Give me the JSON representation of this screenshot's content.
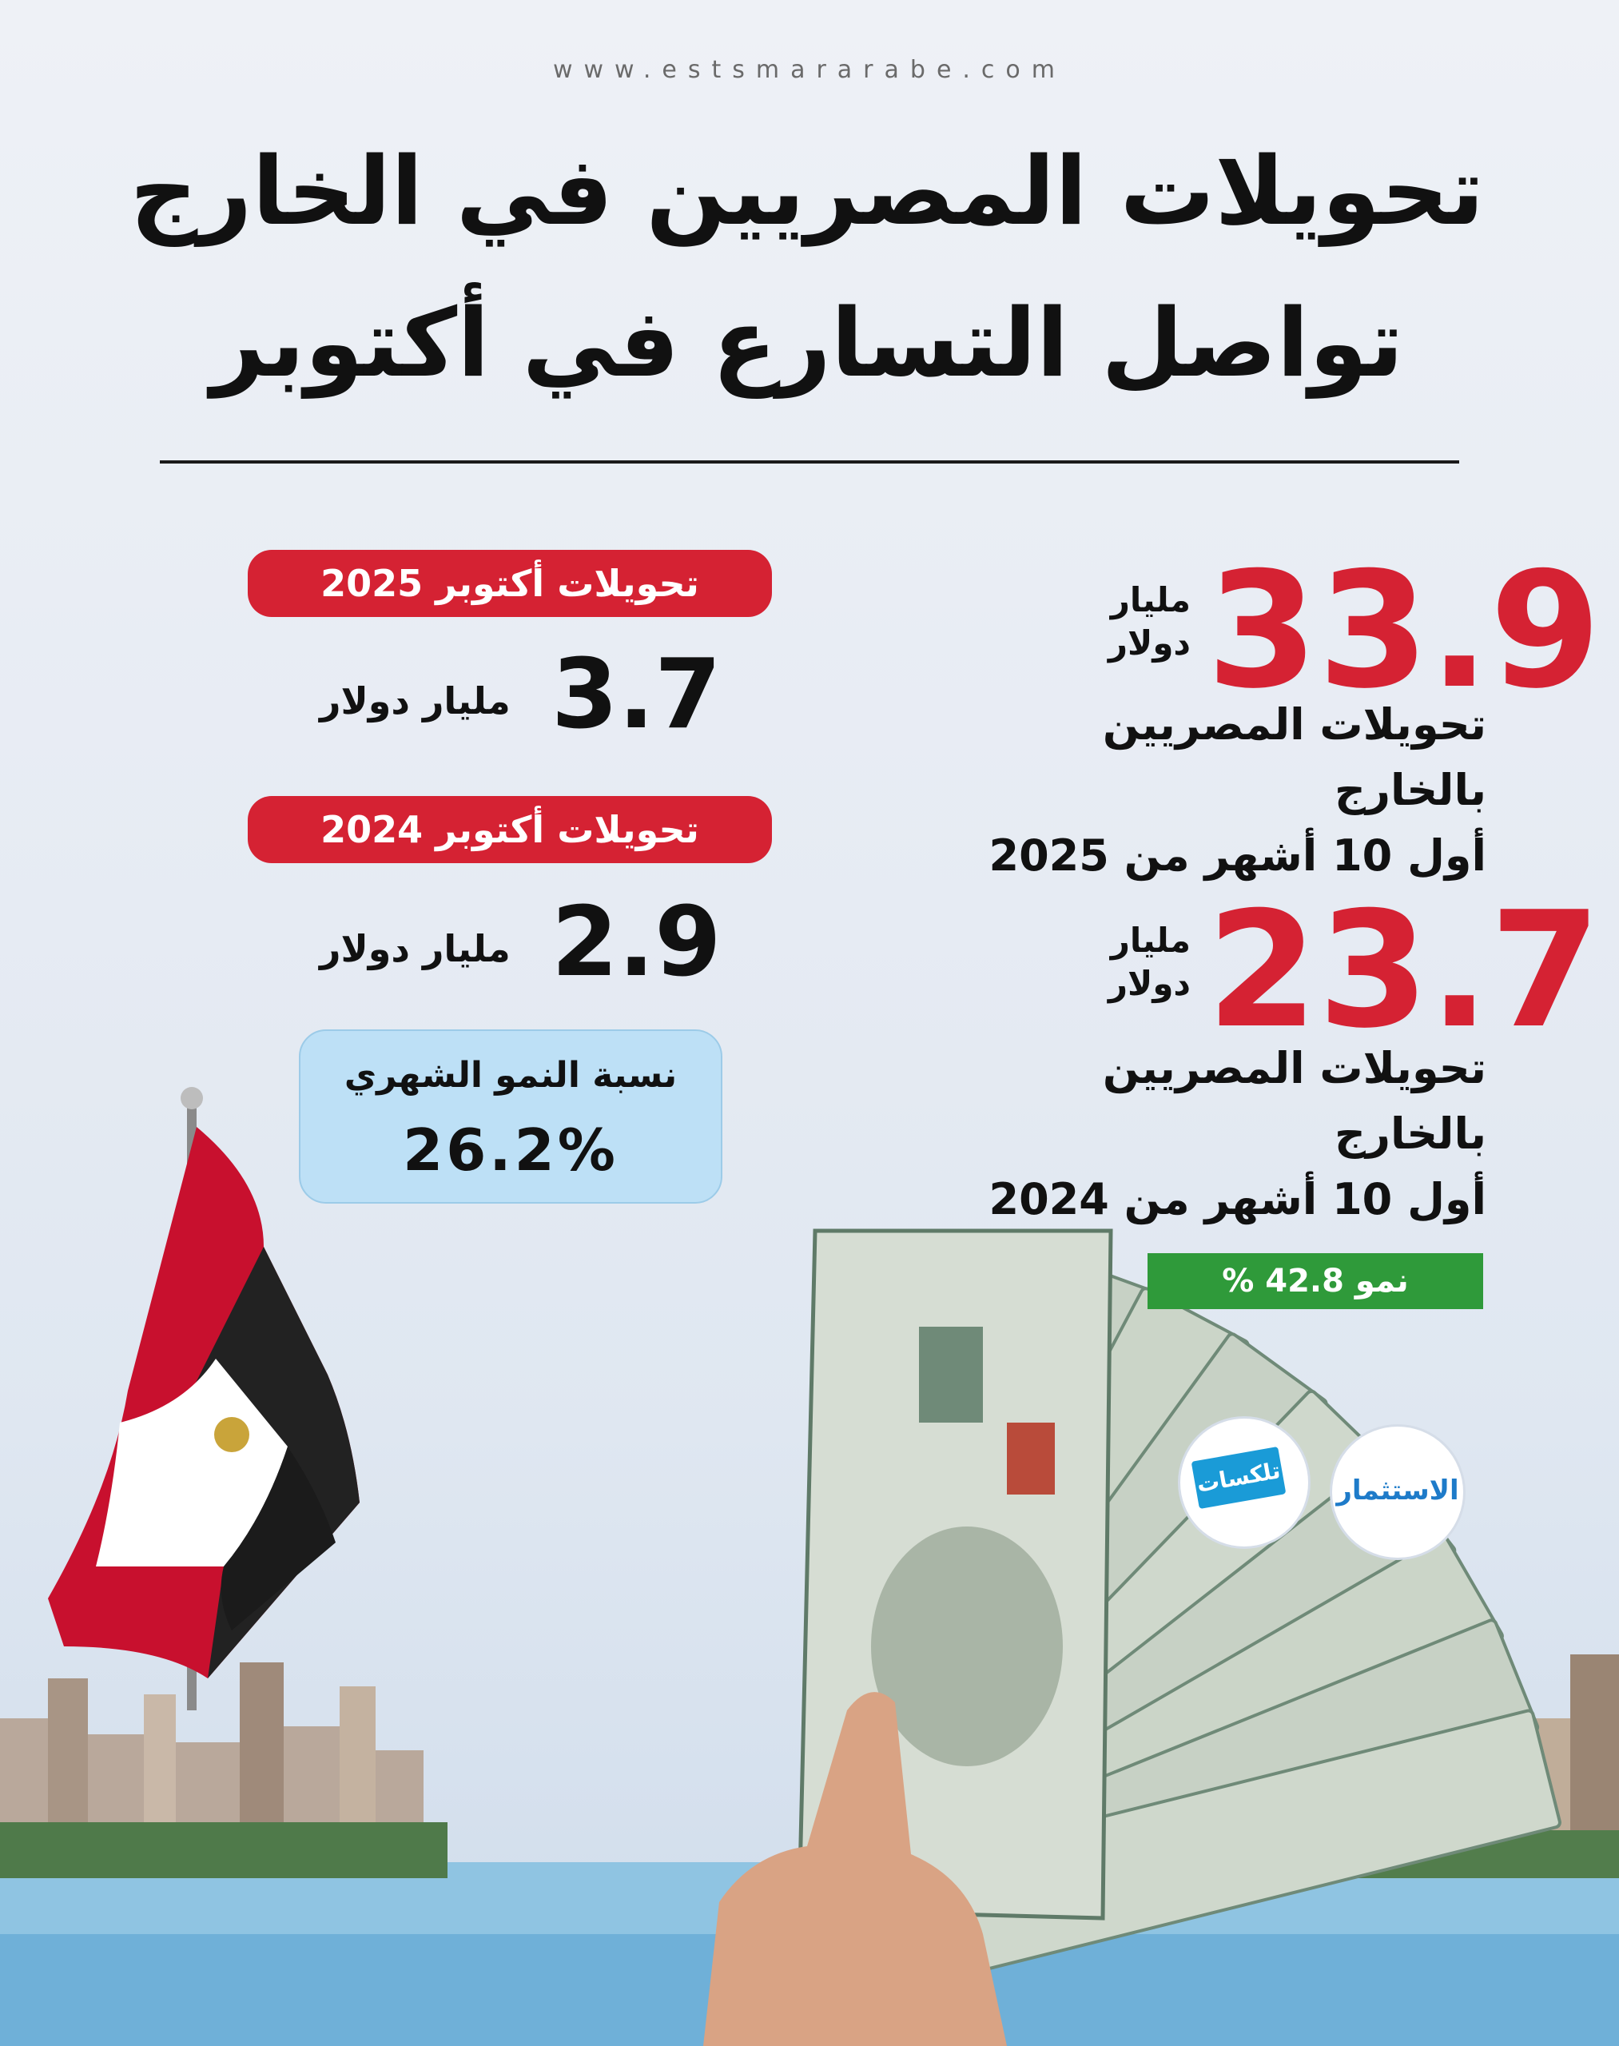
{
  "website": "www.estsmararabe.com",
  "title": {
    "line1": "تحويلات المصريين في الخارج",
    "line2": "تواصل التسارع في أكتوبر"
  },
  "left_panel": {
    "oct2025": {
      "label": "تحويلات أكتوبر 2025",
      "value": "3.7",
      "unit": "مليار دولار"
    },
    "oct2024": {
      "label": "تحويلات أكتوبر 2024",
      "value": "2.9",
      "unit": "مليار دولار"
    },
    "monthly_growth": {
      "label": "نسبة النمو الشهري",
      "value": "26.2%"
    }
  },
  "right_panel": {
    "ytd2025": {
      "value": "33.9",
      "unit_line1": "مليار",
      "unit_line2": "دولار",
      "caption_line1": "تحويلات المصريين بالخارج",
      "caption_line2": "أول 10 أشهر من 2025"
    },
    "ytd2024": {
      "value": "23.7",
      "unit_line1": "مليار",
      "unit_line2": "دولار",
      "caption_line1": "تحويلات المصريين بالخارج",
      "caption_line2": "أول 10 أشهر من 2024"
    },
    "growth_badge": "نمو 42.8 %"
  },
  "logos": {
    "estsmar": "الاستثمار",
    "telexat": "تلكسات"
  },
  "colors": {
    "accent_red": "#d52233",
    "growth_green": "#2f9a3a",
    "growth_box_blue": "#bde0f6"
  }
}
